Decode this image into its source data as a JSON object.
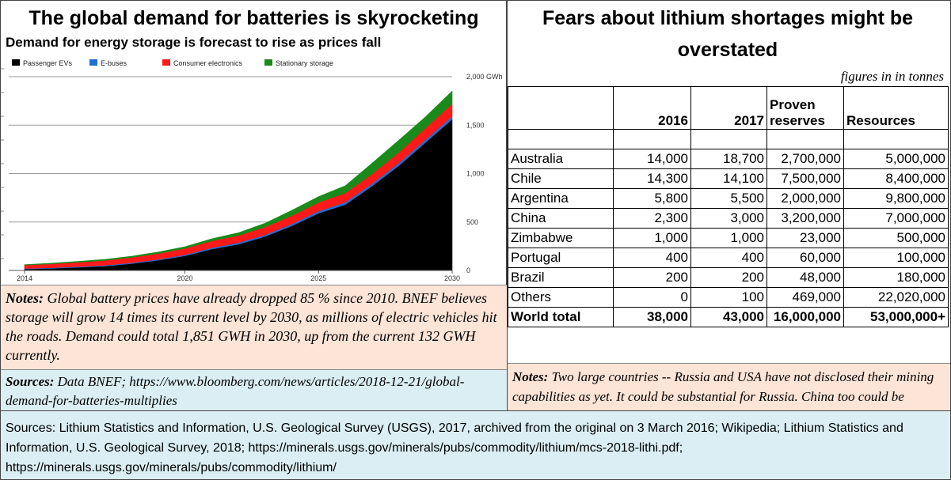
{
  "left": {
    "title": "The global demand for batteries is skyrocketing",
    "subtitle": "Demand for energy storage is forecast to rise as prices fall",
    "notes_label": "Notes:",
    "notes_text": "  Global battery prices have already dropped 85 % since 2010. BNEF believes storage will grow 14 times its current level by 2030, as millions of electric vehicles hit the roads. Demand could total 1,851 GWH in 2030, up from the current 132 GWH currently.",
    "sources_label": "Sources:",
    "sources_text": " Data BNEF; https://www.bloomberg.com/news/articles/2018-12-21/global-demand-for-batteries-multiplies"
  },
  "chart_data": {
    "type": "area",
    "stacked": true,
    "x": [
      2014,
      2015,
      2016,
      2017,
      2018,
      2019,
      2020,
      2021,
      2022,
      2023,
      2024,
      2025,
      2026,
      2027,
      2028,
      2029,
      2030
    ],
    "series": [
      {
        "name": "Passenger EVs",
        "color": "#000000",
        "values": [
          15,
          22,
          32,
          45,
          70,
          105,
          150,
          220,
          270,
          350,
          460,
          590,
          680,
          870,
          1080,
          1320,
          1560
        ]
      },
      {
        "name": "E-buses",
        "color": "#1f6fd1",
        "values": [
          5,
          6,
          7,
          8,
          9,
          10,
          12,
          14,
          16,
          18,
          20,
          22,
          24,
          26,
          28,
          30,
          32
        ]
      },
      {
        "name": "Consumer electronics",
        "color": "#ff1a1a",
        "values": [
          35,
          40,
          45,
          50,
          55,
          60,
          65,
          70,
          75,
          80,
          85,
          90,
          95,
          100,
          110,
          120,
          130
        ]
      },
      {
        "name": "Stationary storage",
        "color": "#1a8a1a",
        "values": [
          5,
          7,
          9,
          11,
          13,
          15,
          18,
          22,
          28,
          40,
          55,
          60,
          75,
          110,
          125,
          115,
          129
        ]
      }
    ],
    "x_ticks": [
      2014,
      2020,
      2025,
      2030
    ],
    "y_ticks": [
      0,
      500,
      1000,
      1500,
      2000
    ],
    "y_tick_labels": [
      "0",
      "500",
      "1,000",
      "1,500",
      "2,000 GWh"
    ],
    "ylim": [
      0,
      2000
    ],
    "xlim": [
      2014,
      2030
    ],
    "grid": true,
    "legend": "top-left"
  },
  "right": {
    "title_line1": "Fears about lithium shortages might be",
    "title_line2": "overstated",
    "units_note": "figures in  in tonnes",
    "headers": {
      "c2016": "2016",
      "c2017": "2017",
      "reserves_line1": "Proven",
      "reserves_line2": "reserves",
      "resources": "Resources"
    },
    "rows": [
      {
        "country": "Australia",
        "y2016": "14,000",
        "y2017": "18,700",
        "reserves": "2,700,000",
        "resources": "5,000,000"
      },
      {
        "country": "Chile",
        "y2016": "14,300",
        "y2017": "14,100",
        "reserves": "7,500,000",
        "resources": "8,400,000"
      },
      {
        "country": "Argentina",
        "y2016": "5,800",
        "y2017": "5,500",
        "reserves": "2,000,000",
        "resources": "9,800,000"
      },
      {
        "country": "China",
        "y2016": "2,300",
        "y2017": "3,000",
        "reserves": "3,200,000",
        "resources": "7,000,000"
      },
      {
        "country": "Zimbabwe",
        "y2016": "1,000",
        "y2017": "1,000",
        "reserves": "23,000",
        "resources": "500,000"
      },
      {
        "country": "Portugal",
        "y2016": "400",
        "y2017": "400",
        "reserves": "60,000",
        "resources": "100,000"
      },
      {
        "country": "Brazil",
        "y2016": "200",
        "y2017": "200",
        "reserves": "48,000",
        "resources": "180,000"
      },
      {
        "country": "Others",
        "y2016": "0",
        "y2017": "100",
        "reserves": "469,000",
        "resources": "22,020,000"
      }
    ],
    "total": {
      "country": "World total",
      "y2016": "38,000",
      "y2017": "43,000",
      "reserves": "16,000,000",
      "resources": "53,000,000+"
    },
    "notes_label": "Notes:",
    "notes_text": "  Two large countries -- Russia and USA have not disclosed their mining capabilities as yet.  It could be substantial for Russia. China too could be understated."
  },
  "bottom": {
    "sources_text": "Sources: Lithium Statistics and Information, U.S. Geological Survey (USGS), 2017, archived from the original on 3 March 2016; Wikipedia; Lithium Statistics and Information, U.S. Geological Survey, 2018; https://minerals.usgs.gov/minerals/pubs/commodity/lithium/mcs-2018-lithi.pdf; https://minerals.usgs.gov/minerals/pubs/commodity/lithium/"
  }
}
